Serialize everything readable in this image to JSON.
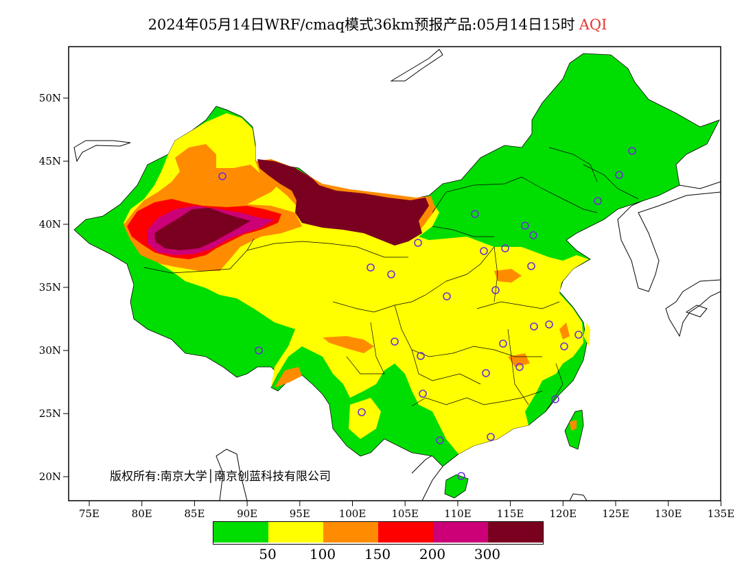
{
  "title": {
    "main": "2024年05月14日WRF/cmaq模式36km预报产品:05月14日15时",
    "tag": "AQI"
  },
  "copyright": "版权所有:南京大学│南京创蓝科技有限公司",
  "axes": {
    "x_ticks": [
      "75E",
      "80E",
      "85E",
      "90E",
      "95E",
      "100E",
      "105E",
      "110E",
      "115E",
      "120E",
      "125E",
      "130E",
      "135E"
    ],
    "y_ticks": [
      "50N",
      "45N",
      "40N",
      "35N",
      "30N",
      "25N",
      "20N"
    ]
  },
  "legend": {
    "colors": [
      "#00dd00",
      "#ffff00",
      "#ff8c00",
      "#ff0000",
      "#cc0077",
      "#7a0020"
    ],
    "ticks": [
      "50",
      "100",
      "150",
      "200",
      "300"
    ]
  },
  "colors": {
    "good": "#00dd00",
    "moderate": "#ffff00",
    "usg": "#ff8c00",
    "unhealthy": "#ff0000",
    "very_unhealthy": "#cc0077",
    "hazardous": "#7a0020",
    "station_marker": "#6a2fd6"
  }
}
